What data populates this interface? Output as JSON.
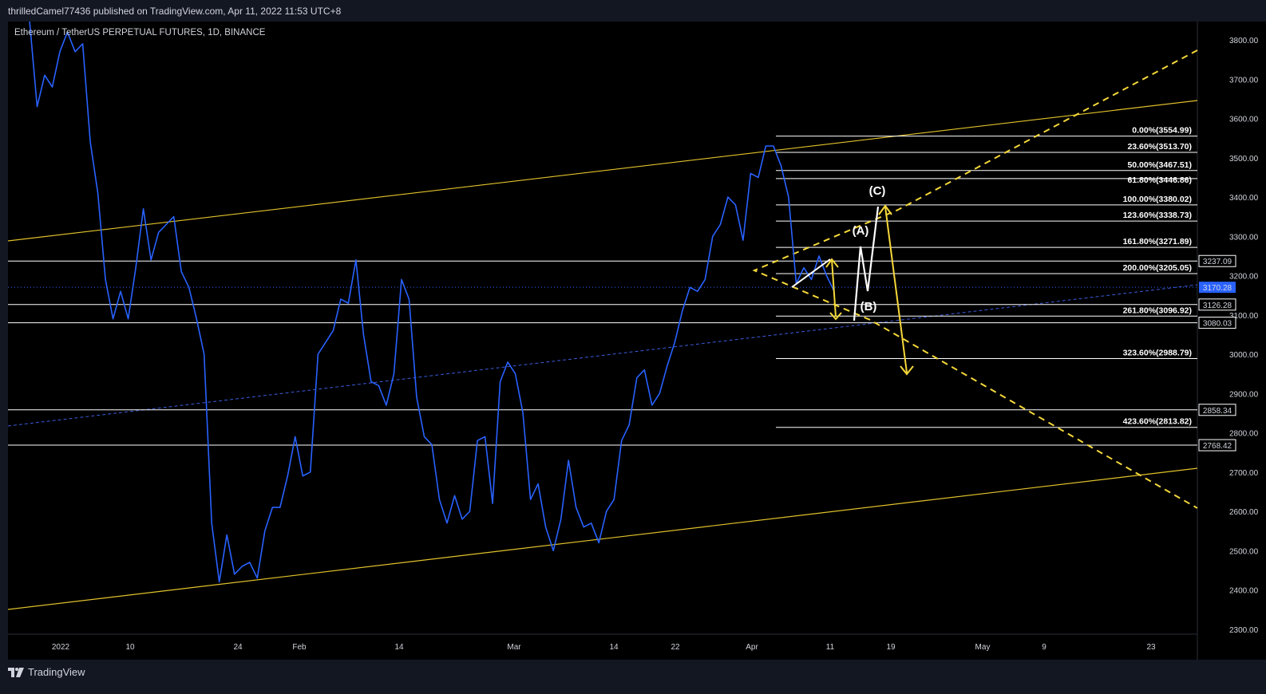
{
  "publisher_line": "thrilledCamel77436 published on TradingView.com, Apr 11, 2022 11:53 UTC+8",
  "symbol_line": "Ethereum / TetherUS PERPETUAL FUTURES, 1D, BINANCE",
  "brand": {
    "name": "TradingView",
    "logo_icon": "tradingview-logo-icon"
  },
  "colors": {
    "background": "#000000",
    "price_line": "#2962ff",
    "channel": "#e2c22b",
    "dashed": "#f5d83a",
    "horizontal": "#ffffff",
    "wave": "#ffffff",
    "current_price_badge": "#2962ff"
  },
  "chart_data": {
    "type": "line",
    "title": "Ethereum / TetherUS PERPETUAL FUTURES, 1D, BINANCE",
    "ylim": [
      2250,
      3870
    ],
    "y_ticks": [
      2300,
      2400,
      2500,
      2600,
      2700,
      2800,
      2900,
      3000,
      3100,
      3200,
      3300,
      3400,
      3500,
      3600,
      3700,
      3800
    ],
    "x_tick_labels": [
      "2022",
      "10",
      "24",
      "Feb",
      "14",
      "Mar",
      "14",
      "22",
      "Apr",
      "11",
      "19",
      "May",
      "9",
      "23"
    ],
    "grid": false,
    "series": [
      {
        "values": [
          3850,
          3630,
          3710,
          3680,
          3770,
          3820,
          3770,
          3790,
          3540,
          3410,
          3190,
          3090,
          3160,
          3090,
          3220,
          3370,
          3240,
          3310,
          3330,
          3350,
          3210,
          3170,
          3090,
          3000,
          2570,
          2420,
          2540,
          2440,
          2460,
          2470,
          2430,
          2550,
          2610,
          2610,
          2690,
          2790,
          2690,
          2700,
          3000,
          3030,
          3060,
          3140,
          3130,
          3240,
          3050,
          2930,
          2920,
          2870,
          2950,
          3190,
          3140,
          2890,
          2790,
          2770,
          2630,
          2570,
          2640,
          2580,
          2600,
          2780,
          2790,
          2620,
          2930,
          2980,
          2950,
          2850,
          2630,
          2670,
          2560,
          2500,
          2580,
          2730,
          2610,
          2560,
          2570,
          2520,
          2600,
          2630,
          2780,
          2820,
          2940,
          2960,
          2870,
          2900,
          2970,
          3030,
          3110,
          3170,
          3160,
          3190,
          3300,
          3330,
          3400,
          3380,
          3290,
          3460,
          3450,
          3530,
          3530,
          3480,
          3400,
          3180,
          3220,
          3190,
          3250,
          3200,
          3160
        ]
      }
    ],
    "fib_levels": [
      {
        "label": "0.00%(3554.99)",
        "value": 3554.99
      },
      {
        "label": "23.60%(3513.70)",
        "value": 3513.7
      },
      {
        "label": "50.00%(3467.51)",
        "value": 3467.51
      },
      {
        "label": "61.80%(3446.86)",
        "value": 3446.86
      },
      {
        "label": "100.00%(3380.02)",
        "value": 3380.02
      },
      {
        "label": "123.60%(3338.73)",
        "value": 3338.73
      },
      {
        "label": "161.80%(3271.89)",
        "value": 3271.89
      },
      {
        "label": "200.00%(3205.05)",
        "value": 3205.05
      },
      {
        "label": "261.80%(3096.92)",
        "value": 3096.92
      },
      {
        "label": "323.60%(2988.79)",
        "value": 2988.79
      },
      {
        "label": "423.60%(2813.82)",
        "value": 2813.82
      }
    ],
    "horizontal_levels": [
      {
        "label": "3237.09",
        "value": 3237.09
      },
      {
        "label": "3126.28",
        "value": 3126.28
      },
      {
        "label": "3080.03",
        "value": 3080.03
      },
      {
        "label": "2858.34",
        "value": 2858.34
      },
      {
        "label": "2768.42",
        "value": 2768.42
      }
    ],
    "current_price": {
      "label": "3170.28",
      "value": 3170.28
    },
    "wave_labels": [
      "(A)",
      "(B)",
      "(C)"
    ]
  }
}
